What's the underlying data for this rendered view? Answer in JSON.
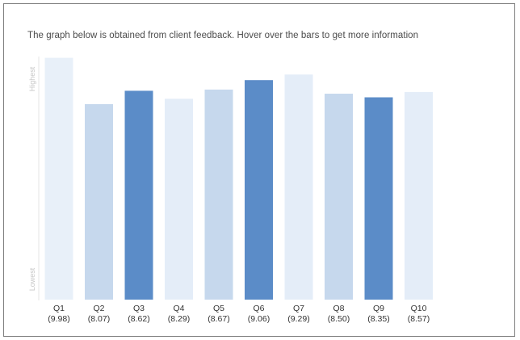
{
  "note": "The graph below is obtained from client feedback. Hover over the bars to get more information",
  "chart_data": {
    "type": "bar",
    "title": "",
    "xlabel": "",
    "ylabel": "",
    "axis_top_label": "Highest",
    "axis_bottom_label": "Lowest",
    "categories": [
      "Q1",
      "Q2",
      "Q3",
      "Q4",
      "Q5",
      "Q6",
      "Q7",
      "Q8",
      "Q9",
      "Q10"
    ],
    "values": [
      9.98,
      8.07,
      8.62,
      8.29,
      8.67,
      9.06,
      9.29,
      8.5,
      8.35,
      8.57
    ],
    "value_labels": [
      "(9.98)",
      "(8.07)",
      "(8.62)",
      "(8.29)",
      "(8.67)",
      "(9.06)",
      "(9.29)",
      "(8.50)",
      "(8.35)",
      "(8.57)"
    ],
    "bar_colors": [
      "#e8f0f9",
      "#c6d8ed",
      "#5b8cc8",
      "#e4edf8",
      "#c6d8ed",
      "#5b8cc8",
      "#e4edf8",
      "#c6d8ed",
      "#5b8cc8",
      "#e4edf8"
    ],
    "ylim": [
      0,
      10
    ],
    "grid": false,
    "legend": "none"
  }
}
